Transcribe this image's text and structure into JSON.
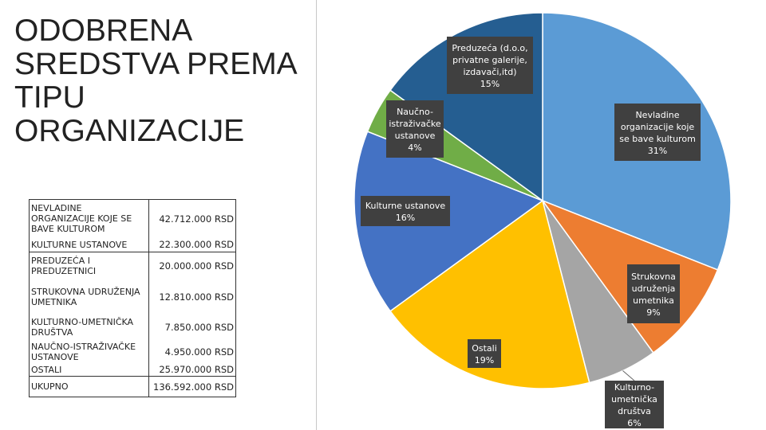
{
  "title_lines": [
    "ODOBRENA",
    "SREDSTVA PREMA",
    "TIPU",
    "ORGANIZACIJE"
  ],
  "table": {
    "rows": [
      {
        "label": "NEVLADINE ORGANIZACIJE KOJE SE BAVE KULTUROM",
        "amount": "42.712.000 RSD"
      },
      {
        "label": "KULTURNE USTANOVE",
        "amount": "22.300.000 RSD"
      },
      {
        "label": "PREDUZEĆA I PREDUZETNICI",
        "amount": "20.000.000 RSD"
      },
      {
        "label": "STRUKOVNA UDRUŽENJA UMETNIKA",
        "amount": "12.810.000 RSD"
      },
      {
        "label": "KULTURNO-UMETNIČKA DRUŠTVA",
        "amount": "7.850.000 RSD"
      },
      {
        "label": "NAUČNO-ISTRAŽIVAČKE USTANOVE",
        "amount": "4.950.000 RSD"
      },
      {
        "label": "OSTALI",
        "amount": "25.970.000 RSD"
      }
    ],
    "total": {
      "label": "UKUPNO",
      "amount": "136.592.000 RSD"
    }
  },
  "chart_data": {
    "type": "pie",
    "title": "",
    "slices": [
      {
        "label": "Nevladine organizacije koje se bave kulturom",
        "percent": "31%",
        "value": 31,
        "color": "#5b9bd5"
      },
      {
        "label": "Strukovna udruženja umetnika",
        "percent": "9%",
        "value": 9,
        "color": "#ed7d31"
      },
      {
        "label": "Kulturno-umetnička društva",
        "percent": "6%",
        "value": 6,
        "color": "#a5a5a5"
      },
      {
        "label": "Ostali",
        "percent": "19%",
        "value": 19,
        "color": "#ffc000"
      },
      {
        "label": "Kulturne ustanove",
        "percent": "16%",
        "value": 16,
        "color": "#4472c4"
      },
      {
        "label": "Naučno-istraživačke ustanove",
        "percent": "4%",
        "value": 4,
        "color": "#70ad47"
      },
      {
        "label": "Preduzeća (d.o.o, privatne galerije, izdavači,itd)",
        "percent": "15%",
        "value": 15,
        "color": "#255e91"
      }
    ],
    "callout_lines": [
      [
        "Nevladine",
        "organizacije koje",
        "se bave kulturom",
        "31%"
      ],
      [
        "Strukovna",
        "udruženja",
        "umetnika",
        "9%"
      ],
      [
        "Kulturno-",
        "umetnička",
        "društva",
        "6%"
      ],
      [
        "Ostali",
        "19%"
      ],
      [
        "Kulturne ustanove",
        "16%"
      ],
      [
        "Naučno-",
        "istraživačke",
        "ustanove",
        "4%"
      ],
      [
        "Preduzeća (d.o.o,",
        "privatne galerije,",
        "izdavači,itd)",
        "15%"
      ]
    ]
  }
}
